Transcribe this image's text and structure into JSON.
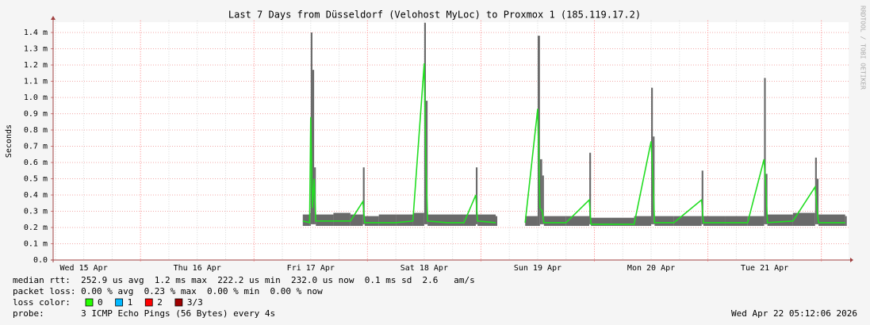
{
  "chart_data": {
    "type": "smoke",
    "title": "Last 7 Days from Düsseldorf (Velohost MyLoc) to Proxmox 1 (185.119.17.2)",
    "ylabel": "Seconds",
    "watermark": "RRDTOOL / TOBI OETIKER",
    "xlim": [
      15.23,
      22.24
    ],
    "xticks": [
      {
        "value": 15.5,
        "label": "Wed 15 Apr"
      },
      {
        "value": 16.5,
        "label": "Thu 16 Apr"
      },
      {
        "value": 17.5,
        "label": "Fri 17 Apr"
      },
      {
        "value": 18.5,
        "label": "Sat 18 Apr"
      },
      {
        "value": 19.5,
        "label": "Sun 19 Apr"
      },
      {
        "value": 20.5,
        "label": "Mon 20 Apr"
      },
      {
        "value": 21.5,
        "label": "Tue 21 Apr"
      }
    ],
    "xgrid_major": [
      16,
      17,
      18,
      19,
      20,
      21,
      22
    ],
    "xgrid_minor": [
      15.25,
      15.5,
      15.75,
      16.25,
      16.5,
      16.75,
      17.25,
      17.5,
      17.75,
      18.25,
      18.5,
      18.75,
      19.25,
      19.5,
      19.75,
      20.25,
      20.5,
      20.75,
      21.25,
      21.5,
      21.75
    ],
    "ylim": [
      0,
      1.46
    ],
    "yticks": [
      {
        "value": 0,
        "label": "0.0"
      },
      {
        "value": 0.1,
        "label": "0.1 m"
      },
      {
        "value": 0.2,
        "label": "0.2 m"
      },
      {
        "value": 0.3,
        "label": "0.3 m"
      },
      {
        "value": 0.4,
        "label": "0.4 m"
      },
      {
        "value": 0.5,
        "label": "0.5 m"
      },
      {
        "value": 0.6,
        "label": "0.6 m"
      },
      {
        "value": 0.7,
        "label": "0.7 m"
      },
      {
        "value": 0.8,
        "label": "0.8 m"
      },
      {
        "value": 0.9,
        "label": "0.9 m"
      },
      {
        "value": 1.0,
        "label": "1.0 m"
      },
      {
        "value": 1.1,
        "label": "1.1 m"
      },
      {
        "value": 1.2,
        "label": "1.2 m"
      },
      {
        "value": 1.3,
        "label": "1.3 m"
      },
      {
        "value": 1.4,
        "label": "1.4 m"
      }
    ],
    "grid": true,
    "x": [
      17.43,
      17.49,
      17.5,
      17.515,
      17.53,
      17.545,
      17.7,
      17.85,
      17.96,
      17.975,
      18.1,
      18.25,
      18.4,
      18.5,
      18.515,
      18.53,
      18.7,
      18.85,
      18.955,
      18.97,
      19.13,
      19.26,
      19.39,
      19.5,
      19.52,
      19.54,
      19.555,
      19.75,
      19.955,
      19.97,
      20.15,
      20.35,
      20.5,
      20.515,
      20.53,
      20.7,
      20.945,
      20.96,
      21.15,
      21.35,
      21.495,
      21.51,
      21.525,
      21.75,
      21.945,
      21.96,
      21.975,
      22.21
    ],
    "series": [
      {
        "name": "max",
        "color": "#6a6a6a",
        "values": [
          0.28,
          0.29,
          1.4,
          1.17,
          0.57,
          0.28,
          0.29,
          0.28,
          0.57,
          0.27,
          0.28,
          0.28,
          0.29,
          1.46,
          0.98,
          0.28,
          0.28,
          0.28,
          0.57,
          0.28,
          0.27,
          null,
          0.27,
          1.38,
          0.62,
          0.52,
          0.27,
          0.27,
          0.66,
          0.26,
          0.26,
          0.27,
          1.06,
          0.76,
          0.27,
          0.27,
          0.55,
          0.27,
          0.27,
          0.27,
          1.12,
          0.53,
          0.28,
          0.29,
          0.63,
          0.5,
          0.28,
          0.27
        ]
      },
      {
        "name": "median",
        "color": "#22dd22",
        "values": [
          0.24,
          0.23,
          0.88,
          0.32,
          0.5,
          0.24,
          0.24,
          0.24,
          0.36,
          0.23,
          0.23,
          0.23,
          0.24,
          1.21,
          0.58,
          0.24,
          0.23,
          0.23,
          0.4,
          0.24,
          0.23,
          null,
          0.23,
          0.93,
          0.32,
          0.3,
          0.23,
          0.23,
          0.37,
          0.22,
          0.22,
          0.22,
          0.73,
          0.52,
          0.23,
          0.23,
          0.37,
          0.23,
          0.23,
          0.23,
          0.62,
          0.45,
          0.23,
          0.24,
          0.45,
          0.33,
          0.23,
          0.23
        ]
      },
      {
        "name": "min",
        "color": "#6a6a6a",
        "values": [
          0.21,
          0.21,
          0.22,
          0.22,
          0.22,
          0.21,
          0.21,
          0.21,
          0.22,
          0.21,
          0.21,
          0.21,
          0.21,
          0.22,
          0.22,
          0.21,
          0.21,
          0.21,
          0.22,
          0.21,
          0.21,
          null,
          0.21,
          0.21,
          0.22,
          0.22,
          0.21,
          0.21,
          0.22,
          0.21,
          0.21,
          0.21,
          0.22,
          0.22,
          0.21,
          0.21,
          0.22,
          0.21,
          0.21,
          0.21,
          0.22,
          0.22,
          0.21,
          0.21,
          0.22,
          0.22,
          0.21,
          0.21
        ]
      }
    ],
    "legend": {
      "rtt": "median rtt:  252.9 us avg  1.2 ms max  222.2 us min  232.0 us now  0.1 ms sd  2.6   am/s",
      "loss": "packet loss: 0.00 % avg  0.23 % max  0.00 % min  0.00 % now",
      "loss_color_label": "loss color:",
      "loss_colors": [
        {
          "label": "0",
          "color": "#26ff00"
        },
        {
          "label": "1",
          "color": "#00b8ff"
        },
        {
          "label": "2",
          "color": "#ff0000"
        },
        {
          "label": "3/3",
          "color": "#a00000"
        }
      ],
      "probe": "probe:       3 ICMP Echo Pings (56 Bytes) every 4s",
      "timestamp": "Wed Apr 22 05:12:06 2026"
    }
  }
}
